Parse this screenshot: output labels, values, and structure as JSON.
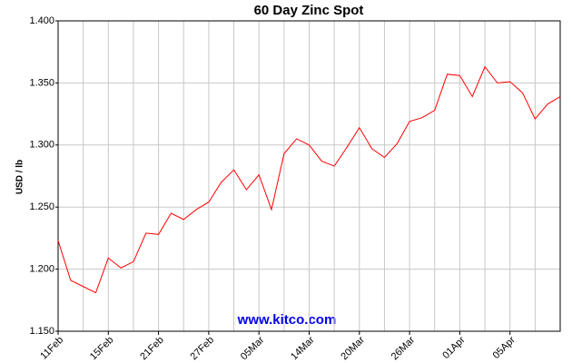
{
  "chart_data": {
    "type": "line",
    "title": "60 Day Zinc Spot",
    "y_label": "USD / lb",
    "watermark": "www.kitco.com",
    "categories": [
      "11Feb",
      null,
      null,
      null,
      "15Feb",
      null,
      null,
      null,
      "21Feb",
      null,
      null,
      null,
      "27Feb",
      null,
      null,
      null,
      "05Mar",
      null,
      null,
      null,
      "14Mar",
      null,
      null,
      null,
      "20Mar",
      null,
      null,
      null,
      "26Mar",
      null,
      null,
      null,
      "01Apr",
      null,
      null,
      null,
      "05Apr",
      null,
      null,
      null,
      null
    ],
    "series": [
      {
        "name": "Zinc",
        "color": "#ff0000",
        "values": [
          1.223,
          1.191,
          1.186,
          1.181,
          1.209,
          1.201,
          1.206,
          1.229,
          1.228,
          1.245,
          1.24,
          1.248,
          1.254,
          1.27,
          1.28,
          1.264,
          1.276,
          1.248,
          1.293,
          1.305,
          1.3,
          1.287,
          1.283,
          1.298,
          1.314,
          1.297,
          1.29,
          1.301,
          1.319,
          1.322,
          1.328,
          1.357,
          1.356,
          1.339,
          1.363,
          1.35,
          1.351,
          1.342,
          1.321,
          1.333,
          1.339
        ]
      }
    ],
    "ylim": [
      1.15,
      1.4
    ],
    "yticks": [
      {
        "value": 1.15,
        "label": "1.150"
      },
      {
        "value": 1.2,
        "label": "1.200"
      },
      {
        "value": 1.25,
        "label": "1.250"
      },
      {
        "value": 1.3,
        "label": "1.300"
      },
      {
        "value": 1.35,
        "label": "1.350"
      },
      {
        "value": 1.4,
        "label": "1.400"
      }
    ],
    "grid": true
  }
}
